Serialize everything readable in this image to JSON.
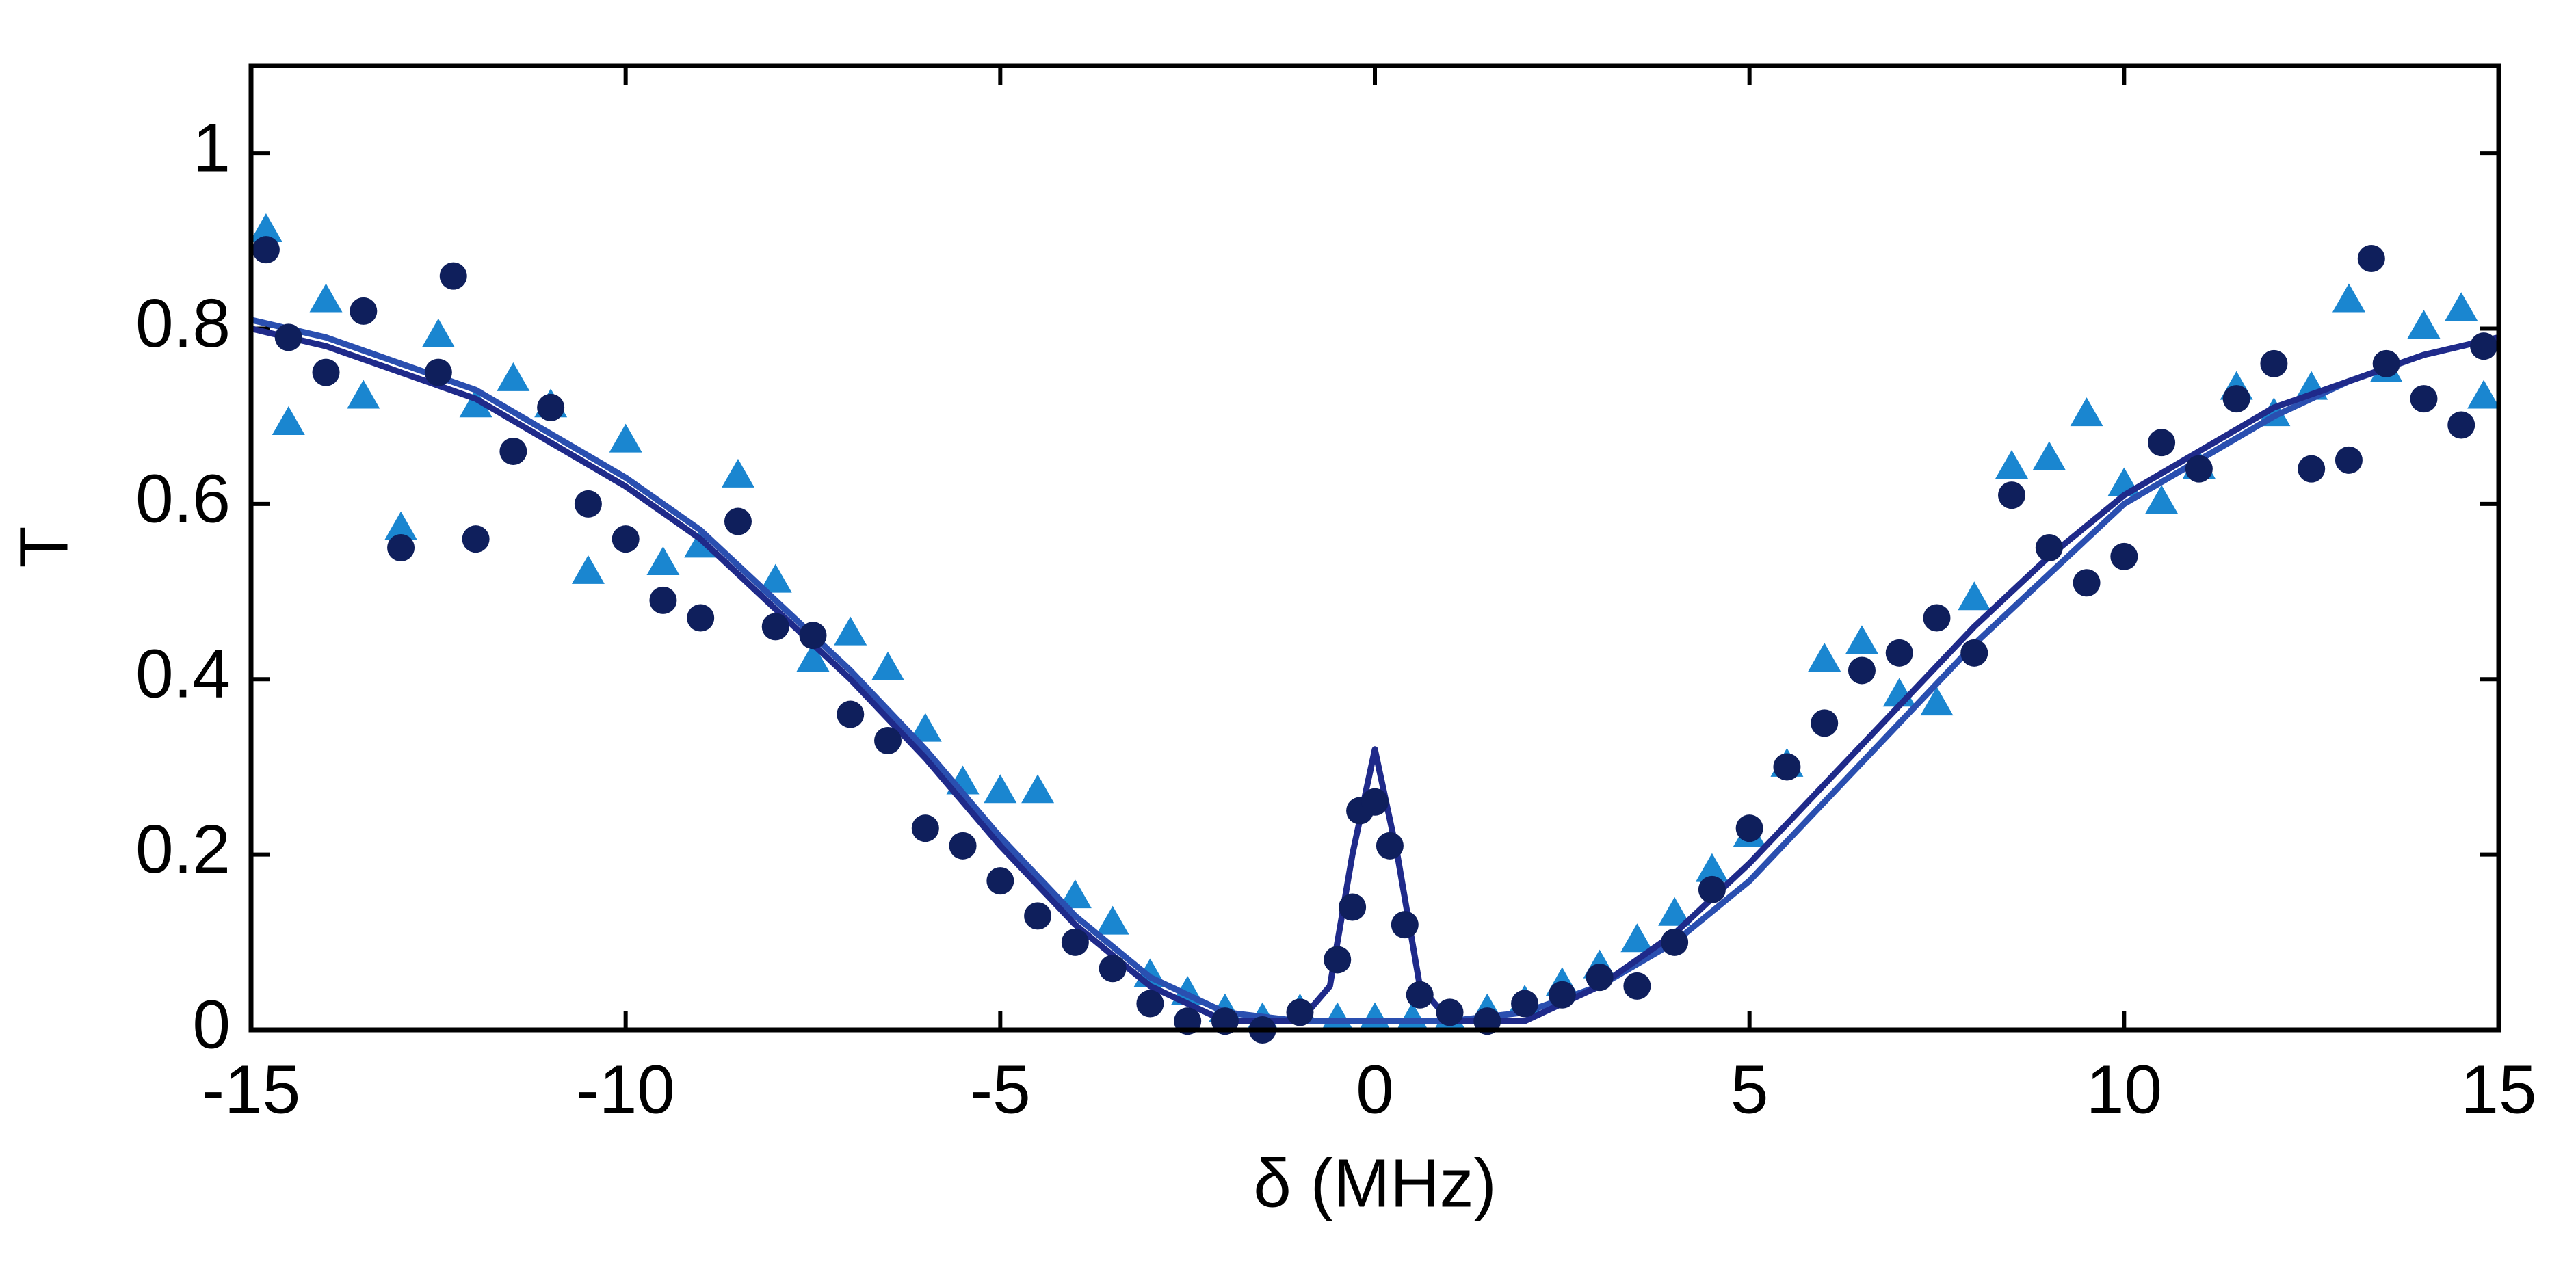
{
  "chart_data": {
    "type": "scatter",
    "xlabel": "δ (MHz)",
    "ylabel": "T",
    "xlim": [
      -15,
      15
    ],
    "ylim": [
      0,
      1.1
    ],
    "xticks": [
      -15,
      -10,
      -5,
      0,
      5,
      10,
      15
    ],
    "yticks": [
      0,
      0.2,
      0.4,
      0.6,
      0.8,
      1
    ],
    "series": [
      {
        "marker": "triangle",
        "color": "#1a86d0",
        "x": [
          -14.8,
          -14.5,
          -14,
          -13.5,
          -13,
          -12.5,
          -12,
          -11.5,
          -11,
          -10.5,
          -10,
          -9.5,
          -9,
          -8.5,
          -8,
          -7.5,
          -7,
          -6.5,
          -6,
          -5.5,
          -5,
          -4.5,
          -4,
          -3.5,
          -3,
          -2.5,
          -2,
          -1.5,
          -1,
          -0.5,
          0,
          0.5,
          1,
          1.5,
          2,
          2.5,
          3,
          3.5,
          4,
          4.5,
          5,
          5.5,
          6,
          6.5,
          7,
          7.5,
          8,
          8.5,
          9,
          9.5,
          10,
          10.5,
          11,
          11.5,
          12,
          12.5,
          13,
          13.5,
          14,
          14.5,
          14.8
        ],
        "values": [
          0.91,
          0.69,
          0.83,
          0.72,
          0.57,
          0.79,
          0.71,
          0.74,
          0.71,
          0.52,
          0.67,
          0.53,
          0.55,
          0.63,
          0.51,
          0.42,
          0.45,
          0.41,
          0.34,
          0.28,
          0.27,
          0.27,
          0.15,
          0.12,
          0.06,
          0.04,
          0.02,
          0.01,
          0.02,
          0.01,
          0.01,
          0.01,
          0.01,
          0.02,
          0.03,
          0.05,
          0.07,
          0.1,
          0.13,
          0.18,
          0.22,
          0.3,
          0.42,
          0.44,
          0.38,
          0.37,
          0.49,
          0.64,
          0.65,
          0.7,
          0.62,
          0.6,
          0.64,
          0.73,
          0.7,
          0.73,
          0.83,
          0.75,
          0.8,
          0.82,
          0.72
        ]
      },
      {
        "marker": "line",
        "color": "#2a4fb0",
        "x": [
          -15,
          -14,
          -13,
          -12,
          -11,
          -10,
          -9,
          -8,
          -7,
          -6,
          -5,
          -4,
          -3,
          -2,
          -1,
          0,
          1,
          2,
          3,
          4,
          5,
          6,
          7,
          8,
          9,
          10,
          11,
          12,
          13,
          14,
          15
        ],
        "values": [
          0.81,
          0.79,
          0.76,
          0.73,
          0.68,
          0.63,
          0.57,
          0.49,
          0.41,
          0.32,
          0.22,
          0.13,
          0.06,
          0.02,
          0.01,
          0.01,
          0.01,
          0.02,
          0.05,
          0.1,
          0.17,
          0.26,
          0.35,
          0.44,
          0.52,
          0.6,
          0.65,
          0.7,
          0.74,
          0.77,
          0.79
        ]
      },
      {
        "marker": "line",
        "color": "#1f2a8a",
        "x": [
          -15,
          -14,
          -13,
          -12,
          -11,
          -10,
          -9,
          -8,
          -7,
          -6,
          -5,
          -4,
          -3,
          -2,
          -1,
          -0.6,
          -0.3,
          0,
          0.3,
          0.6,
          1,
          2,
          3,
          4,
          5,
          6,
          7,
          8,
          9,
          10,
          11,
          12,
          13,
          14,
          15
        ],
        "values": [
          0.8,
          0.78,
          0.75,
          0.72,
          0.67,
          0.62,
          0.56,
          0.48,
          0.4,
          0.31,
          0.21,
          0.12,
          0.05,
          0.01,
          0.01,
          0.05,
          0.2,
          0.32,
          0.2,
          0.05,
          0.01,
          0.01,
          0.05,
          0.11,
          0.19,
          0.28,
          0.37,
          0.46,
          0.54,
          0.61,
          0.66,
          0.71,
          0.74,
          0.77,
          0.79
        ]
      },
      {
        "marker": "circle",
        "color": "#0f1f5c",
        "x": [
          -14.8,
          -14.5,
          -14,
          -13.5,
          -13,
          -12.5,
          -12.3,
          -12,
          -11.5,
          -11,
          -10.5,
          -10,
          -9.5,
          -9,
          -8.5,
          -8,
          -7.5,
          -7,
          -6.5,
          -6,
          -5.5,
          -5,
          -4.5,
          -4,
          -3.5,
          -3,
          -2.5,
          -2,
          -1.5,
          -1,
          -0.5,
          -0.3,
          -0.2,
          0,
          0.2,
          0.4,
          0.6,
          1,
          1.5,
          2,
          2.5,
          3,
          3.5,
          4,
          4.5,
          5,
          5.5,
          6,
          6.5,
          7,
          7.5,
          8,
          8.5,
          9,
          9.5,
          10,
          10.5,
          11,
          11.5,
          12,
          12.5,
          13,
          13.3,
          13.5,
          14,
          14.5,
          14.8
        ],
        "values": [
          0.89,
          0.79,
          0.75,
          0.82,
          0.55,
          0.75,
          0.86,
          0.56,
          0.66,
          0.71,
          0.6,
          0.56,
          0.49,
          0.47,
          0.58,
          0.46,
          0.45,
          0.36,
          0.33,
          0.23,
          0.21,
          0.17,
          0.13,
          0.1,
          0.07,
          0.03,
          0.01,
          0.01,
          0,
          0.02,
          0.08,
          0.14,
          0.25,
          0.26,
          0.21,
          0.12,
          0.04,
          0.02,
          0.01,
          0.03,
          0.04,
          0.06,
          0.05,
          0.1,
          0.16,
          0.23,
          0.3,
          0.35,
          0.41,
          0.43,
          0.47,
          0.43,
          0.61,
          0.55,
          0.51,
          0.54,
          0.67,
          0.64,
          0.72,
          0.76,
          0.64,
          0.65,
          0.88,
          0.76,
          0.72,
          0.69,
          0.78
        ]
      }
    ]
  }
}
